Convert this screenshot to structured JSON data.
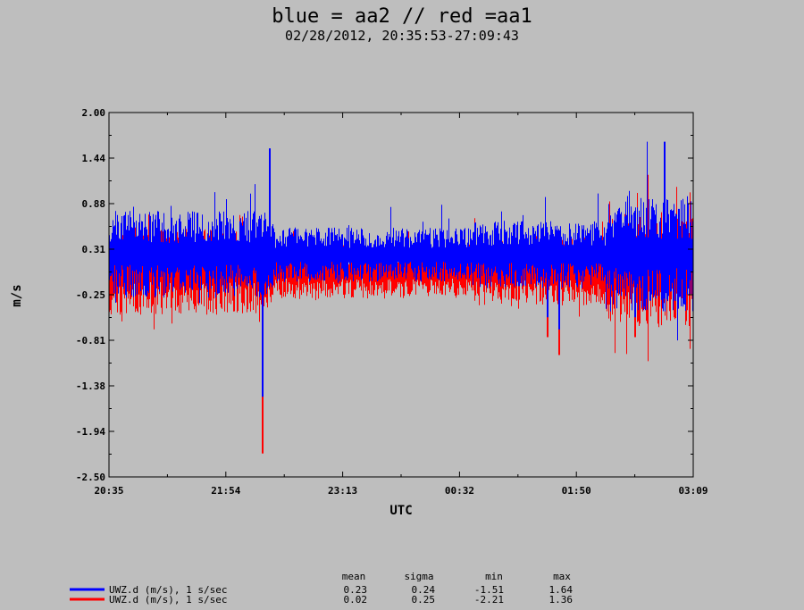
{
  "title": "blue = aa2 // red =aa1",
  "subtitle": "02/28/2012, 20:35:53-27:09:43",
  "colors": {
    "background": "#bebebe",
    "plot_background": "#bebebe",
    "series_blue": "#0000ff",
    "series_red": "#ff0000"
  },
  "chart_data": {
    "type": "line",
    "xlabel": "UTC",
    "ylabel": "m/s",
    "x_ticks": [
      "20:35",
      "21:54",
      "23:13",
      "00:32",
      "01:50",
      "03:09"
    ],
    "y_ticks": [
      "2.00",
      "1.44",
      "0.88",
      "0.31",
      "-0.25",
      "-0.81",
      "-1.38",
      "-1.94",
      "-2.50"
    ],
    "ylim": [
      -2.5,
      2.0
    ],
    "grid": false,
    "x_unit": "minutes since 20:35",
    "series": [
      {
        "name": "UWZ.d (m/s), 1 s/sec",
        "color": "#0000ff",
        "mean": 0.23,
        "sigma": 0.24,
        "min": -1.51,
        "max": 1.64
      },
      {
        "name": "UWZ.d (m/s), 1 s/sec",
        "color": "#ff0000",
        "mean": 0.02,
        "sigma": 0.25,
        "min": -2.21,
        "max": 1.36
      }
    ]
  },
  "legend": {
    "headers": {
      "mean": "mean",
      "sigma": "sigma",
      "min": "min",
      "max": "max"
    },
    "rows": [
      {
        "label": "UWZ.d (m/s), 1 s/sec",
        "color": "#0000ff",
        "mean": "0.23",
        "sigma": "0.24",
        "min": "-1.51",
        "max": "1.64"
      },
      {
        "label": "UWZ.d (m/s), 1 s/sec",
        "color": "#ff0000",
        "mean": "0.02",
        "sigma": "0.25",
        "min": "-2.21",
        "max": "1.36"
      }
    ]
  }
}
